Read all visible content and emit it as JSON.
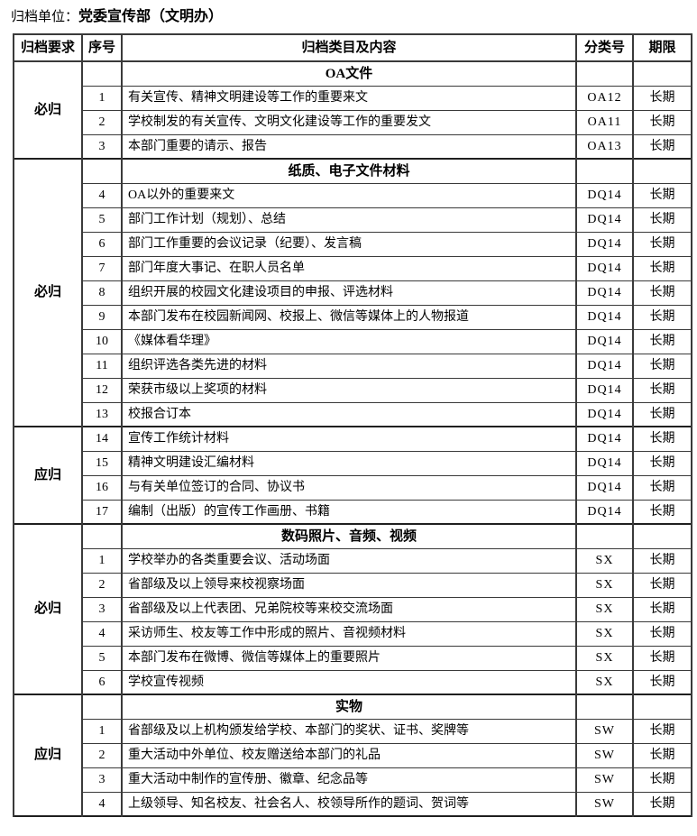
{
  "title": {
    "label": "归档单位：",
    "value": "党委宣传部（文明办）"
  },
  "table": {
    "headers": [
      "归档要求",
      "序号",
      "归档类目及内容",
      "分类号",
      "期限"
    ],
    "groups": [
      {
        "requirement": "必归",
        "section": "OA文件",
        "rows": [
          {
            "no": "1",
            "content": "有关宣传、精神文明建设等工作的重要来文",
            "class_no": "OA12",
            "period": "长期"
          },
          {
            "no": "2",
            "content": "学校制发的有关宣传、文明文化建设等工作的重要发文",
            "class_no": "OA11",
            "period": "长期"
          },
          {
            "no": "3",
            "content": "本部门重要的请示、报告",
            "class_no": "OA13",
            "period": "长期"
          }
        ]
      },
      {
        "requirement": "必归",
        "section": "纸质、电子文件材料",
        "rows": [
          {
            "no": "4",
            "content": "OA以外的重要来文",
            "class_no": "DQ14",
            "period": "长期"
          },
          {
            "no": "5",
            "content": "部门工作计划（规划）、总结",
            "class_no": "DQ14",
            "period": "长期"
          },
          {
            "no": "6",
            "content": "部门工作重要的会议记录（纪要）、发言稿",
            "class_no": "DQ14",
            "period": "长期"
          },
          {
            "no": "7",
            "content": "部门年度大事记、在职人员名单",
            "class_no": "DQ14",
            "period": "长期"
          },
          {
            "no": "8",
            "content": "组织开展的校园文化建设项目的申报、评选材料",
            "class_no": "DQ14",
            "period": "长期"
          },
          {
            "no": "9",
            "content": "本部门发布在校园新闻网、校报上、微信等媒体上的人物报道",
            "class_no": "DQ14",
            "period": "长期"
          },
          {
            "no": "10",
            "content": "《媒体看华理》",
            "class_no": "DQ14",
            "period": "长期"
          },
          {
            "no": "11",
            "content": "组织评选各类先进的材料",
            "class_no": "DQ14",
            "period": "长期"
          },
          {
            "no": "12",
            "content": "荣获市级以上奖项的材料",
            "class_no": "DQ14",
            "period": "长期"
          },
          {
            "no": "13",
            "content": "校报合订本",
            "class_no": "DQ14",
            "period": "长期"
          }
        ]
      },
      {
        "requirement": "应归",
        "rows": [
          {
            "no": "14",
            "content": "宣传工作统计材料",
            "class_no": "DQ14",
            "period": "长期"
          },
          {
            "no": "15",
            "content": "精神文明建设汇编材料",
            "class_no": "DQ14",
            "period": "长期"
          },
          {
            "no": "16",
            "content": "与有关单位签订的合同、协议书",
            "class_no": "DQ14",
            "period": "长期"
          },
          {
            "no": "17",
            "content": "编制（出版）的宣传工作画册、书籍",
            "class_no": "DQ14",
            "period": "长期"
          }
        ]
      },
      {
        "requirement": "必归",
        "section": "数码照片、音频、视频",
        "rows": [
          {
            "no": "1",
            "content": "学校举办的各类重要会议、活动场面",
            "class_no": "SX",
            "period": "长期"
          },
          {
            "no": "2",
            "content": "省部级及以上领导来校视察场面",
            "class_no": "SX",
            "period": "长期"
          },
          {
            "no": "3",
            "content": "省部级及以上代表团、兄弟院校等来校交流场面",
            "class_no": "SX",
            "period": "长期"
          },
          {
            "no": "4",
            "content": "采访师生、校友等工作中形成的照片、音视频材料",
            "class_no": "SX",
            "period": "长期"
          },
          {
            "no": "5",
            "content": "本部门发布在微博、微信等媒体上的重要照片",
            "class_no": "SX",
            "period": "长期"
          },
          {
            "no": "6",
            "content": "学校宣传视频",
            "class_no": "SX",
            "period": "长期"
          }
        ]
      },
      {
        "requirement": "应归",
        "section": "实物",
        "rows": [
          {
            "no": "1",
            "content": "省部级及以上机构颁发给学校、本部门的奖状、证书、奖牌等",
            "class_no": "SW",
            "period": "长期"
          },
          {
            "no": "2",
            "content": "重大活动中外单位、校友赠送给本部门的礼品",
            "class_no": "SW",
            "period": "长期"
          },
          {
            "no": "3",
            "content": "重大活动中制作的宣传册、徽章、纪念品等",
            "class_no": "SW",
            "period": "长期"
          },
          {
            "no": "4",
            "content": "上级领导、知名校友、社会名人、校领导所作的题词、贺词等",
            "class_no": "SW",
            "period": "长期"
          }
        ]
      }
    ]
  }
}
